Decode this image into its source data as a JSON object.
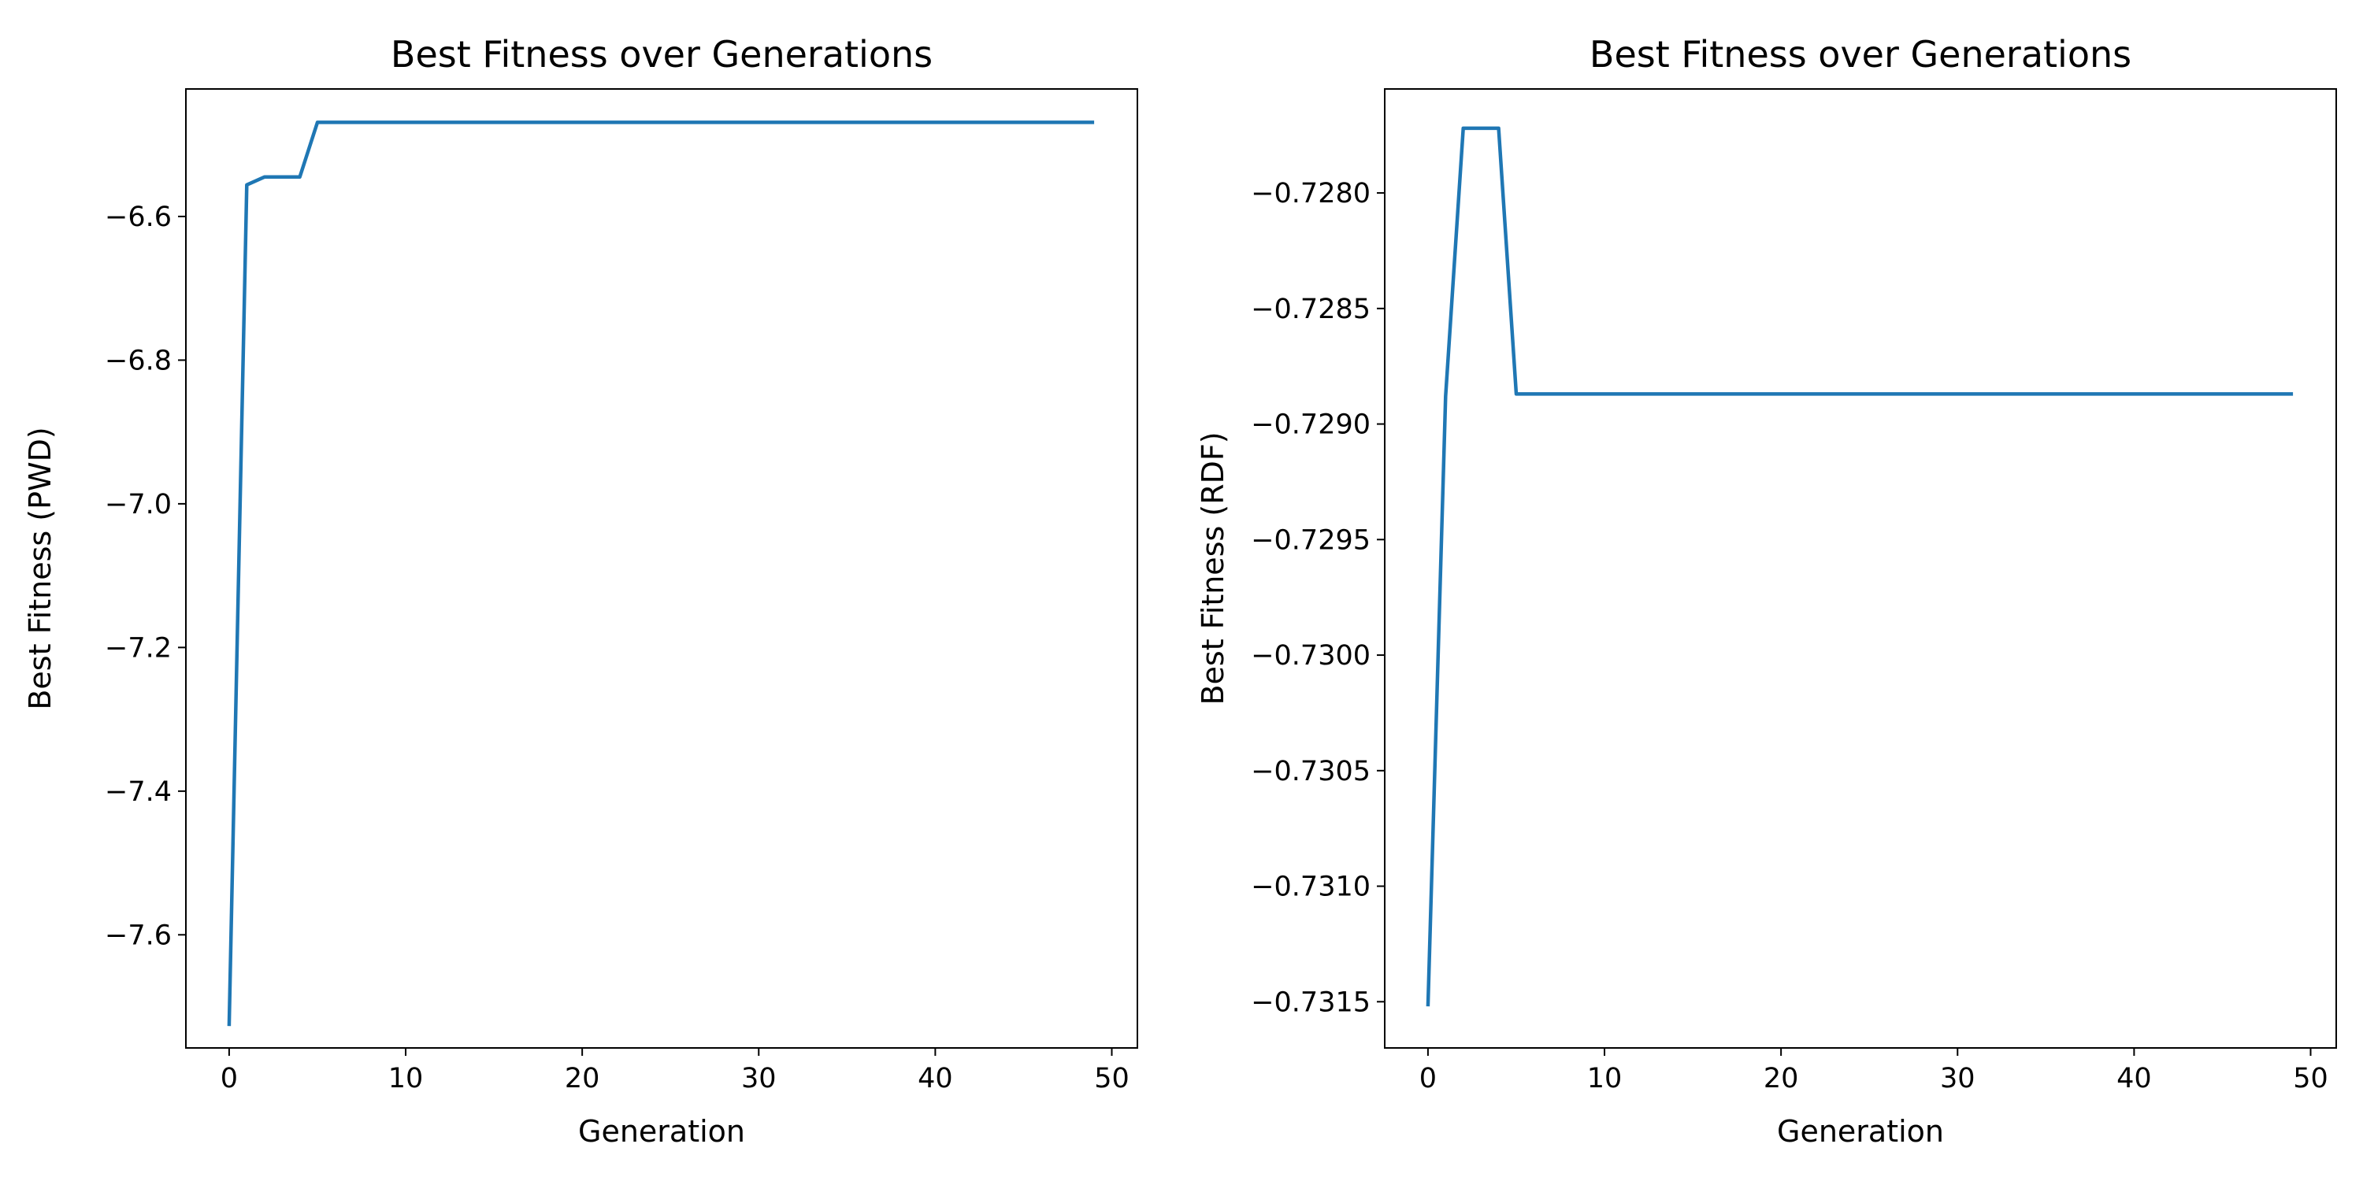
{
  "chart_data": [
    {
      "type": "line",
      "title": "Best Fitness over Generations",
      "xlabel": "Generation",
      "ylabel": "Best Fitness (PWD)",
      "xlim": [
        -2.45,
        51.45
      ],
      "ylim": [
        -7.7575,
        -6.4225
      ],
      "x_ticks": [
        0,
        10,
        20,
        30,
        40,
        50
      ],
      "x_tick_labels": [
        "0",
        "10",
        "20",
        "30",
        "40",
        "50"
      ],
      "y_ticks": [
        -7.6,
        -7.4,
        -7.2,
        -7.0,
        -6.8,
        -6.6
      ],
      "y_tick_labels": [
        "−7.6",
        "−7.4",
        "−7.2",
        "−7.0",
        "−6.8",
        "−6.6"
      ],
      "grid": false,
      "series": [
        {
          "color": "#1f77b4",
          "x": [
            0,
            1,
            2,
            3,
            4,
            5,
            49
          ],
          "y": [
            -7.727,
            -6.556,
            -6.545,
            -6.545,
            -6.545,
            -6.469,
            -6.469
          ]
        }
      ]
    },
    {
      "type": "line",
      "title": "Best Fitness over Generations",
      "xlabel": "Generation",
      "ylabel": "Best Fitness (RDF)",
      "xlim": [
        -2.45,
        51.45
      ],
      "ylim": [
        -0.7317,
        -0.72755
      ],
      "x_ticks": [
        0,
        10,
        20,
        30,
        40,
        50
      ],
      "x_tick_labels": [
        "0",
        "10",
        "20",
        "30",
        "40",
        "50"
      ],
      "y_ticks": [
        -0.7315,
        -0.731,
        -0.7305,
        -0.73,
        -0.7295,
        -0.729,
        -0.7285,
        -0.728
      ],
      "y_tick_labels": [
        "−0.7315",
        "−0.7310",
        "−0.7305",
        "−0.7300",
        "−0.7295",
        "−0.7290",
        "−0.7285",
        "−0.7280"
      ],
      "grid": false,
      "series": [
        {
          "color": "#1f77b4",
          "x": [
            0,
            1,
            2,
            3,
            4,
            5,
            49
          ],
          "y": [
            -0.73152,
            -0.72888,
            -0.72772,
            -0.72772,
            -0.72772,
            -0.72887,
            -0.72887
          ]
        }
      ]
    }
  ]
}
